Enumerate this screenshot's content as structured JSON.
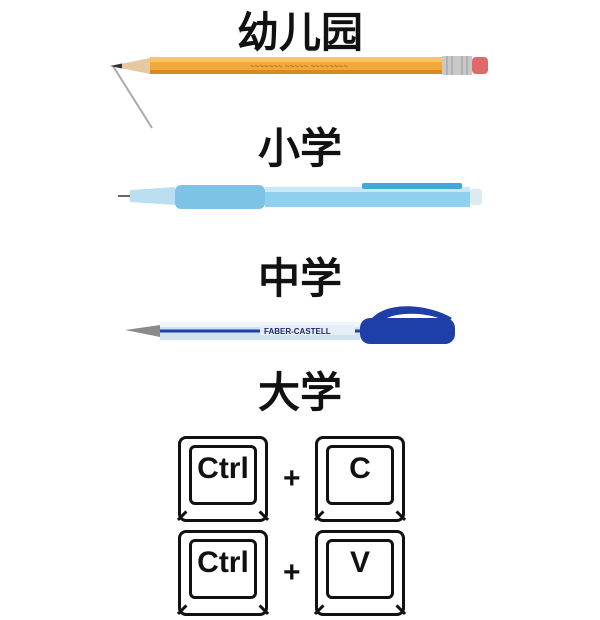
{
  "stages": [
    {
      "label": "幼儿园",
      "item": "pencil"
    },
    {
      "label": "小学",
      "item": "mechanical-pencil"
    },
    {
      "label": "中学",
      "item": "ballpoint-pen"
    },
    {
      "label": "大学",
      "item": "keyboard-shortcuts"
    }
  ],
  "shortcuts": {
    "copy": {
      "mod": "Ctrl",
      "plus": "+",
      "key": "C"
    },
    "paste": {
      "mod": "Ctrl",
      "plus": "+",
      "key": "V"
    }
  },
  "colors": {
    "pencil": "#f2a93b",
    "mech_pencil": "#7cc3e6",
    "pen_blue": "#1f3fa8"
  }
}
